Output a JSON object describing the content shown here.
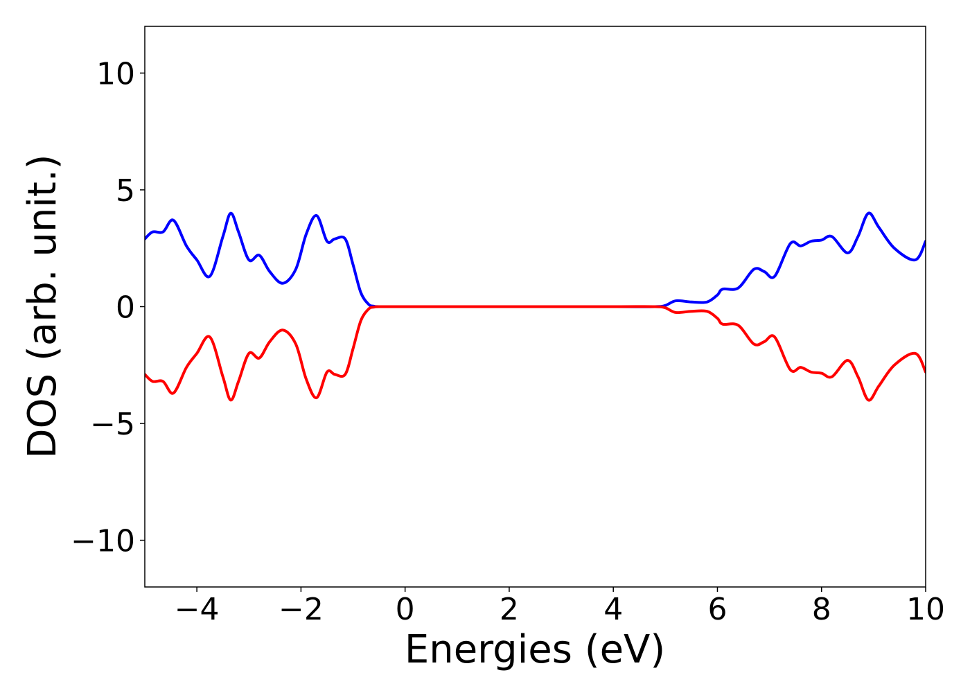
{
  "chart_data": {
    "type": "line",
    "title": "",
    "xlabel": "Energies (eV)",
    "ylabel": "DOS (arb. unit.)",
    "xlim": [
      -5,
      10
    ],
    "ylim": [
      -12,
      12
    ],
    "xticks": [
      -4,
      -2,
      0,
      2,
      4,
      6,
      8,
      10
    ],
    "xtick_labels": [
      "−4",
      "−2",
      "0",
      "2",
      "4",
      "6",
      "8",
      "10"
    ],
    "yticks": [
      -10,
      -5,
      0,
      5,
      10
    ],
    "ytick_labels": [
      "−10",
      "−5",
      "0",
      "5",
      "10"
    ],
    "grid": false,
    "legend": "none",
    "series": [
      {
        "color": "#0000ff",
        "x": [
          -5.0,
          -4.85,
          -4.65,
          -4.45,
          -4.2,
          -4.0,
          -3.75,
          -3.5,
          -3.35,
          -3.2,
          -3.0,
          -2.8,
          -2.6,
          -2.35,
          -2.1,
          -1.9,
          -1.7,
          -1.5,
          -1.35,
          -1.15,
          -1.0,
          -0.85,
          -0.7,
          -0.6,
          -0.5,
          0.0,
          2.0,
          4.0,
          4.8,
          5.0,
          5.2,
          5.5,
          5.8,
          6.0,
          6.1,
          6.4,
          6.7,
          6.9,
          7.1,
          7.4,
          7.6,
          7.8,
          8.0,
          8.2,
          8.5,
          8.7,
          8.9,
          9.1,
          9.4,
          9.8,
          10.0
        ],
        "y": [
          2.9,
          3.2,
          3.2,
          3.7,
          2.6,
          2.0,
          1.3,
          3.0,
          4.0,
          3.2,
          2.0,
          2.2,
          1.5,
          1.0,
          1.6,
          3.1,
          3.9,
          2.8,
          2.9,
          2.9,
          1.8,
          0.6,
          0.1,
          0.02,
          0.0,
          0.0,
          0.0,
          0.0,
          0.0,
          0.05,
          0.25,
          0.2,
          0.2,
          0.5,
          0.75,
          0.8,
          1.6,
          1.5,
          1.3,
          2.7,
          2.6,
          2.8,
          2.85,
          3.0,
          2.3,
          3.0,
          4.0,
          3.4,
          2.5,
          2.0,
          2.8
        ]
      },
      {
        "color": "#ff0000",
        "x": [
          -5.0,
          -4.85,
          -4.65,
          -4.45,
          -4.2,
          -4.0,
          -3.75,
          -3.5,
          -3.35,
          -3.2,
          -3.0,
          -2.8,
          -2.6,
          -2.35,
          -2.1,
          -1.9,
          -1.7,
          -1.5,
          -1.35,
          -1.15,
          -1.0,
          -0.85,
          -0.7,
          -0.6,
          -0.5,
          0.0,
          2.0,
          4.0,
          4.8,
          5.0,
          5.2,
          5.5,
          5.8,
          6.0,
          6.1,
          6.4,
          6.7,
          6.9,
          7.1,
          7.4,
          7.6,
          7.8,
          8.0,
          8.2,
          8.5,
          8.7,
          8.9,
          9.1,
          9.4,
          9.8,
          10.0
        ],
        "y": [
          -2.9,
          -3.2,
          -3.2,
          -3.7,
          -2.6,
          -2.0,
          -1.3,
          -3.0,
          -4.0,
          -3.2,
          -2.0,
          -2.2,
          -1.5,
          -1.0,
          -1.6,
          -3.1,
          -3.9,
          -2.8,
          -2.9,
          -2.9,
          -1.8,
          -0.6,
          -0.1,
          -0.02,
          0.0,
          0.0,
          0.0,
          0.0,
          0.0,
          -0.05,
          -0.25,
          -0.2,
          -0.2,
          -0.5,
          -0.75,
          -0.8,
          -1.6,
          -1.5,
          -1.3,
          -2.7,
          -2.6,
          -2.8,
          -2.85,
          -3.0,
          -2.3,
          -3.0,
          -4.0,
          -3.4,
          -2.5,
          -2.0,
          -2.8
        ]
      }
    ]
  }
}
